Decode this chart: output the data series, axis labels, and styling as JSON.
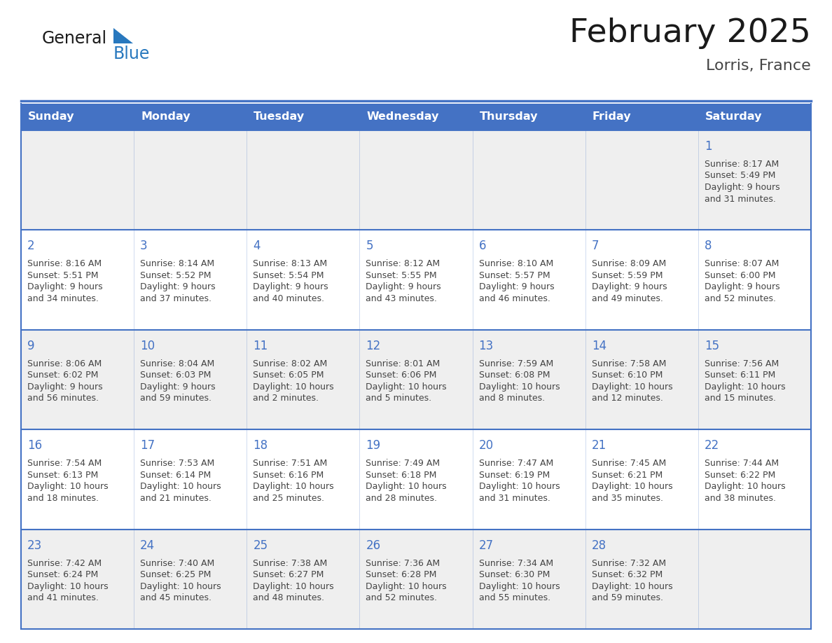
{
  "title": "February 2025",
  "subtitle": "Lorris, France",
  "header_bg": "#4472C4",
  "header_text_color": "#FFFFFF",
  "cell_bg_odd": "#EFEFEF",
  "cell_bg_even": "#FFFFFF",
  "grid_line_color": "#4472C4",
  "day_number_color": "#4472C4",
  "cell_text_color": "#444444",
  "days_of_week": [
    "Sunday",
    "Monday",
    "Tuesday",
    "Wednesday",
    "Thursday",
    "Friday",
    "Saturday"
  ],
  "title_color": "#1a1a1a",
  "subtitle_color": "#444444",
  "logo_general_color": "#1a1a1a",
  "logo_blue_color": "#2878BE",
  "calendar_data": [
    [
      null,
      null,
      null,
      null,
      null,
      null,
      {
        "day": 1,
        "sunrise": "8:17 AM",
        "sunset": "5:49 PM",
        "daylight": "9 hours and 31 minutes."
      }
    ],
    [
      {
        "day": 2,
        "sunrise": "8:16 AM",
        "sunset": "5:51 PM",
        "daylight": "9 hours and 34 minutes."
      },
      {
        "day": 3,
        "sunrise": "8:14 AM",
        "sunset": "5:52 PM",
        "daylight": "9 hours and 37 minutes."
      },
      {
        "day": 4,
        "sunrise": "8:13 AM",
        "sunset": "5:54 PM",
        "daylight": "9 hours and 40 minutes."
      },
      {
        "day": 5,
        "sunrise": "8:12 AM",
        "sunset": "5:55 PM",
        "daylight": "9 hours and 43 minutes."
      },
      {
        "day": 6,
        "sunrise": "8:10 AM",
        "sunset": "5:57 PM",
        "daylight": "9 hours and 46 minutes."
      },
      {
        "day": 7,
        "sunrise": "8:09 AM",
        "sunset": "5:59 PM",
        "daylight": "9 hours and 49 minutes."
      },
      {
        "day": 8,
        "sunrise": "8:07 AM",
        "sunset": "6:00 PM",
        "daylight": "9 hours and 52 minutes."
      }
    ],
    [
      {
        "day": 9,
        "sunrise": "8:06 AM",
        "sunset": "6:02 PM",
        "daylight": "9 hours and 56 minutes."
      },
      {
        "day": 10,
        "sunrise": "8:04 AM",
        "sunset": "6:03 PM",
        "daylight": "9 hours and 59 minutes."
      },
      {
        "day": 11,
        "sunrise": "8:02 AM",
        "sunset": "6:05 PM",
        "daylight": "10 hours and 2 minutes."
      },
      {
        "day": 12,
        "sunrise": "8:01 AM",
        "sunset": "6:06 PM",
        "daylight": "10 hours and 5 minutes."
      },
      {
        "day": 13,
        "sunrise": "7:59 AM",
        "sunset": "6:08 PM",
        "daylight": "10 hours and 8 minutes."
      },
      {
        "day": 14,
        "sunrise": "7:58 AM",
        "sunset": "6:10 PM",
        "daylight": "10 hours and 12 minutes."
      },
      {
        "day": 15,
        "sunrise": "7:56 AM",
        "sunset": "6:11 PM",
        "daylight": "10 hours and 15 minutes."
      }
    ],
    [
      {
        "day": 16,
        "sunrise": "7:54 AM",
        "sunset": "6:13 PM",
        "daylight": "10 hours and 18 minutes."
      },
      {
        "day": 17,
        "sunrise": "7:53 AM",
        "sunset": "6:14 PM",
        "daylight": "10 hours and 21 minutes."
      },
      {
        "day": 18,
        "sunrise": "7:51 AM",
        "sunset": "6:16 PM",
        "daylight": "10 hours and 25 minutes."
      },
      {
        "day": 19,
        "sunrise": "7:49 AM",
        "sunset": "6:18 PM",
        "daylight": "10 hours and 28 minutes."
      },
      {
        "day": 20,
        "sunrise": "7:47 AM",
        "sunset": "6:19 PM",
        "daylight": "10 hours and 31 minutes."
      },
      {
        "day": 21,
        "sunrise": "7:45 AM",
        "sunset": "6:21 PM",
        "daylight": "10 hours and 35 minutes."
      },
      {
        "day": 22,
        "sunrise": "7:44 AM",
        "sunset": "6:22 PM",
        "daylight": "10 hours and 38 minutes."
      }
    ],
    [
      {
        "day": 23,
        "sunrise": "7:42 AM",
        "sunset": "6:24 PM",
        "daylight": "10 hours and 41 minutes."
      },
      {
        "day": 24,
        "sunrise": "7:40 AM",
        "sunset": "6:25 PM",
        "daylight": "10 hours and 45 minutes."
      },
      {
        "day": 25,
        "sunrise": "7:38 AM",
        "sunset": "6:27 PM",
        "daylight": "10 hours and 48 minutes."
      },
      {
        "day": 26,
        "sunrise": "7:36 AM",
        "sunset": "6:28 PM",
        "daylight": "10 hours and 52 minutes."
      },
      {
        "day": 27,
        "sunrise": "7:34 AM",
        "sunset": "6:30 PM",
        "daylight": "10 hours and 55 minutes."
      },
      {
        "day": 28,
        "sunrise": "7:32 AM",
        "sunset": "6:32 PM",
        "daylight": "10 hours and 59 minutes."
      },
      null
    ]
  ]
}
